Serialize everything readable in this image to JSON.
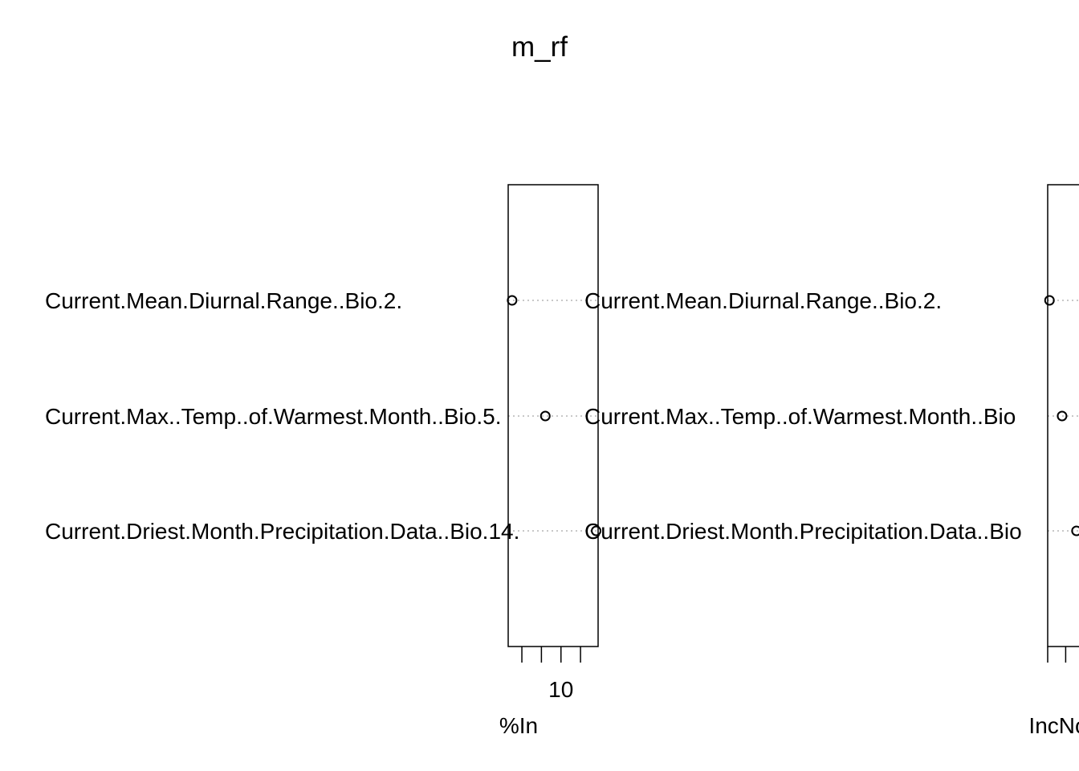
{
  "title": "m_rf",
  "chart_data": [
    {
      "type": "scatter",
      "subtype": "dotchart",
      "categories": [
        "Current.Mean.Diurnal.Range..Bio.2.",
        "Current.Max..Temp..of.Warmest.Month..Bio.5.",
        "Current.Driest.Month.Precipitation.Data..Bio.14."
      ],
      "values": [
        7.5,
        9.2,
        11.8
      ],
      "xlabel": "%In",
      "xlim": [
        7.3,
        11.9
      ],
      "xticks": [
        8,
        9,
        10,
        11
      ],
      "xtick_labels": [
        "",
        "",
        "10",
        ""
      ],
      "grid": "dotted lines per category"
    },
    {
      "type": "scatter",
      "subtype": "dotchart",
      "categories": [
        "Current.Mean.Diurnal.Range..Bio.2.",
        "Current.Max..Temp..of.Warmest.Month..Bio.5.",
        "Current.Driest.Month.Precipitation.Data..Bio.14."
      ],
      "category_labels_shown": [
        "Current.Mean.Diurnal.Range..Bio.2.",
        "Current.Max..Temp..of.Warmest.Month..Bio",
        "Current.Driest.Month.Precipitation.Data..Bio"
      ],
      "values": [
        1.1,
        1.8,
        2.6
      ],
      "xlabel": "IncNo",
      "xlim": [
        1.0,
        6.0
      ],
      "xticks": [
        1,
        2,
        3,
        4
      ],
      "xtick_labels": [
        "",
        "",
        "",
        ""
      ],
      "grid": "dotted lines per category"
    }
  ]
}
